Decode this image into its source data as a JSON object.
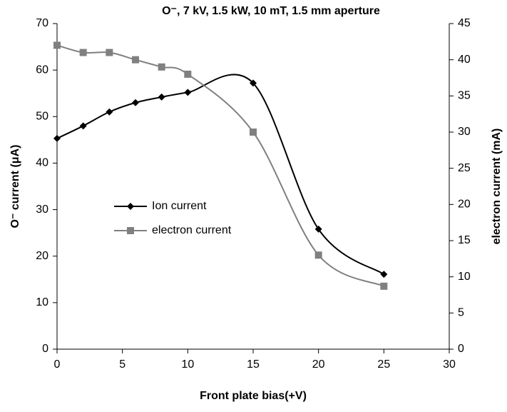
{
  "chart_data": {
    "type": "line",
    "title": "O⁻, 7 kV, 1.5 kW, 10 mT, 1.5 mm aperture",
    "x_label": "Front plate bias(+V)",
    "y_label": "O⁻ current (μA)",
    "y2_label": "electron current (mA)",
    "x": [
      0,
      2,
      4,
      6,
      8,
      10,
      15,
      20,
      25
    ],
    "series": [
      {
        "name": "Ion current",
        "color": "#000000",
        "marker": "diamond",
        "values": [
          45.3,
          48,
          51,
          53,
          54.2,
          55.2,
          57.2,
          25.8,
          16.1
        ]
      },
      {
        "name": "electron current",
        "color": "#808080",
        "marker": "square",
        "axis": "y2",
        "values": [
          42,
          41,
          41,
          40,
          39,
          38,
          30,
          13,
          8.7
        ]
      }
    ],
    "smooth": true,
    "xlim": [
      0,
      30
    ],
    "xticks": [
      0,
      5,
      10,
      15,
      20,
      25,
      30
    ],
    "ylim": [
      0,
      70
    ],
    "yticks": [
      0,
      10,
      20,
      30,
      40,
      50,
      60,
      70
    ],
    "y2lim": [
      0,
      45
    ],
    "y2ticks": [
      0,
      5,
      10,
      15,
      20,
      25,
      30,
      35,
      40,
      45
    ],
    "grid": false,
    "legend": "center-left"
  }
}
